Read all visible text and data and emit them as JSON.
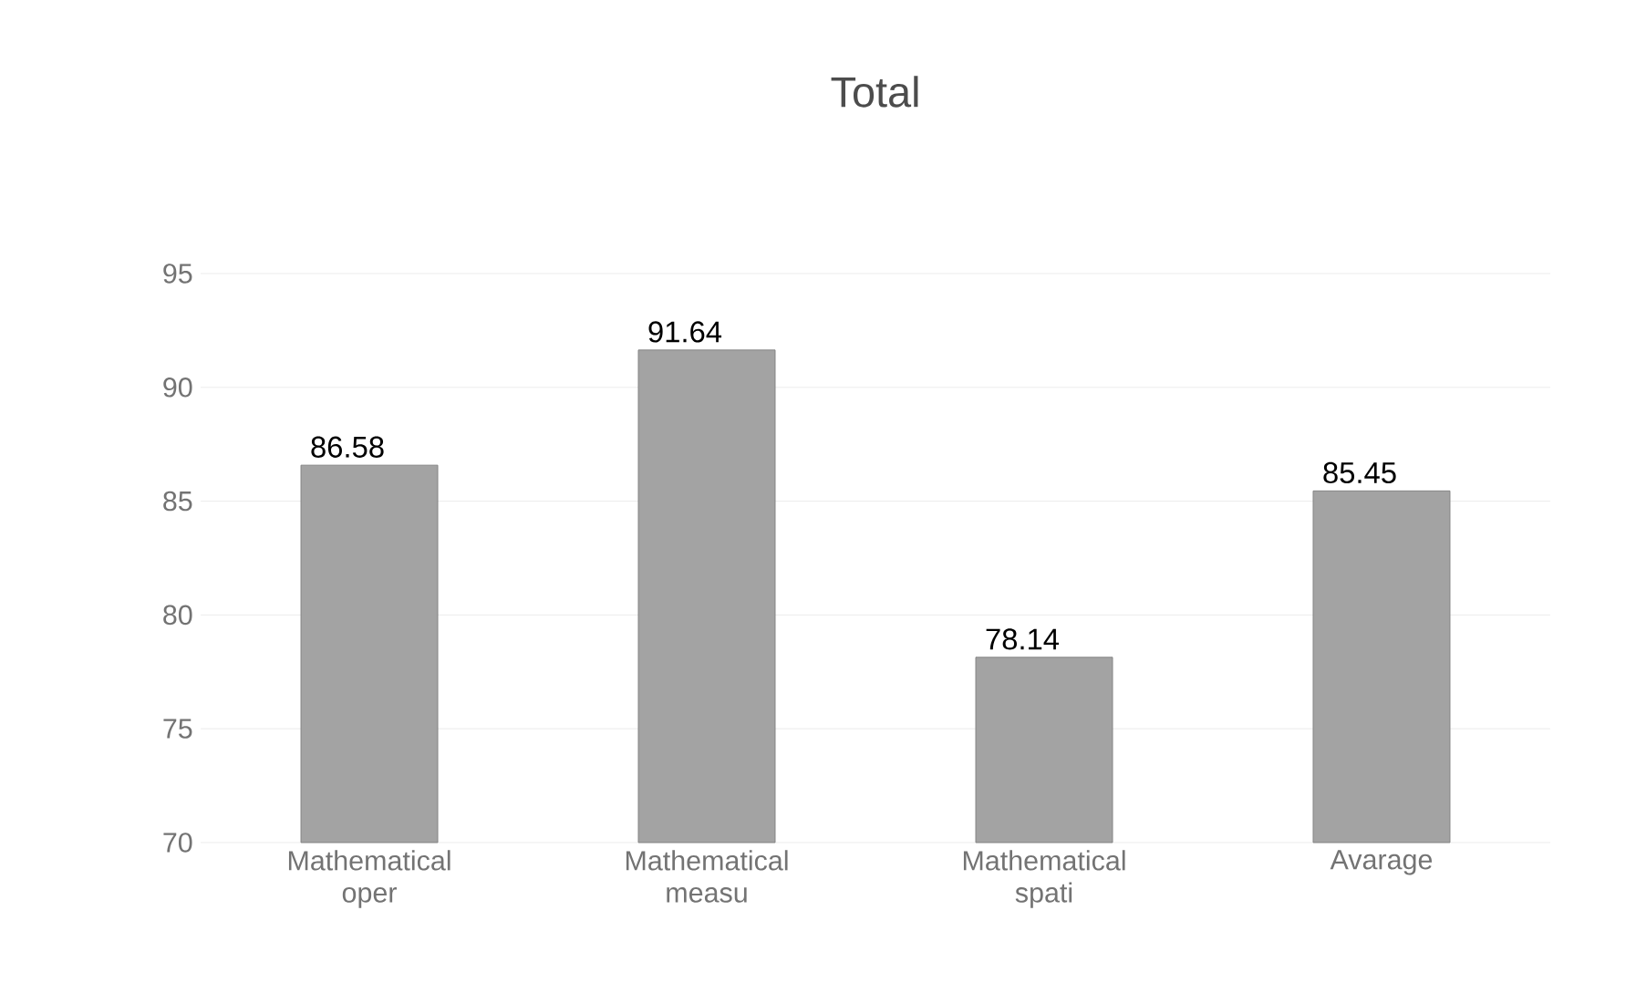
{
  "chart_data": {
    "type": "bar",
    "title": "Total",
    "categories": [
      "Mathematical oper",
      "Mathematical measu",
      "Mathematical spati",
      "Avarage"
    ],
    "values": [
      86.58,
      91.64,
      78.14,
      85.45
    ],
    "color": "#a3a3a3",
    "ylim": [
      70,
      95
    ],
    "yticks": [
      70,
      75,
      80,
      85,
      90,
      95
    ],
    "grid": "y",
    "data_labels": true
  }
}
